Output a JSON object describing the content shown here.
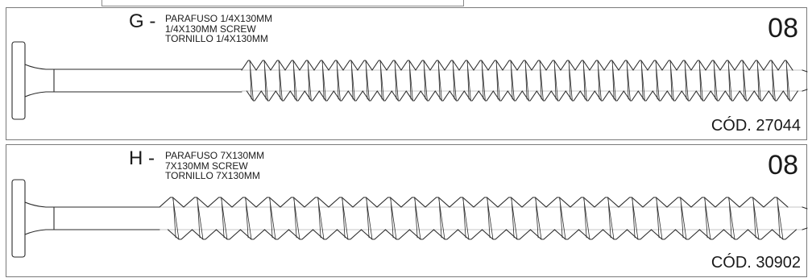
{
  "items": [
    {
      "letter": "G -",
      "lines": [
        "PARAFUSO 1/4X130MM",
        "1/4X130MM SCREW",
        "TORNILLO 1/4X130MM"
      ],
      "quantity": "08",
      "code": "CÓD. 27044",
      "thread": "fine"
    },
    {
      "letter": "H -",
      "lines": [
        "PARAFUSO 7X130MM",
        "7X130MM SCREW",
        "TORNILLO 7X130MM"
      ],
      "quantity": "08",
      "code": "CÓD. 30902",
      "thread": "coarse"
    }
  ]
}
